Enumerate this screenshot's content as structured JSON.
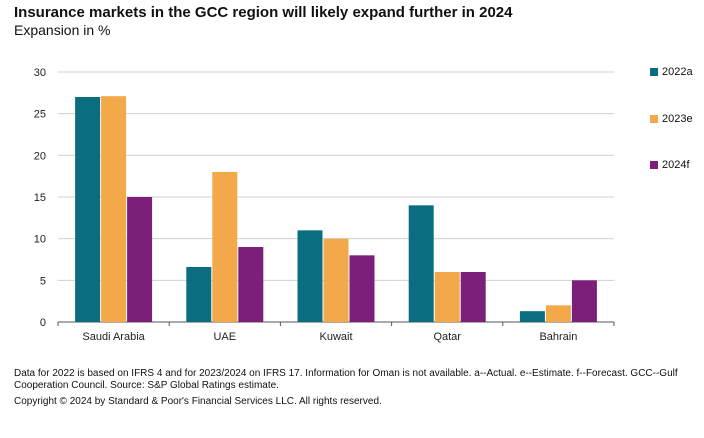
{
  "header": {
    "title": "Insurance markets in the GCC region will likely expand further in 2024",
    "subtitle": "Expansion in %"
  },
  "footer": {
    "note": "Data for 2022 is based on IFRS 4 and for 2023/2024 on IFRS 17. Information for Oman is not available. a--Actual. e--Estimate. f--Forecast. GCC--Gulf Cooperation Council. Source: S&P Global Ratings estimate.",
    "copyright": "Copyright © 2024 by Standard & Poor's Financial Services LLC. All rights reserved."
  },
  "chart_data": {
    "type": "bar",
    "title": "Insurance markets in the GCC region will likely expand further in 2024",
    "subtitle": "Expansion in %",
    "categories": [
      "Saudi Arabia",
      "UAE",
      "Kuwait",
      "Qatar",
      "Bahrain"
    ],
    "series": [
      {
        "name": "2022a",
        "color": "#0b6e80",
        "values": [
          27,
          6.6,
          11,
          14,
          1.3
        ]
      },
      {
        "name": "2023e",
        "color": "#f3a84a",
        "values": [
          27.1,
          18,
          10,
          6,
          2
        ]
      },
      {
        "name": "2024f",
        "color": "#7b1f7a",
        "values": [
          15,
          9,
          8,
          6,
          5
        ]
      }
    ],
    "ylim": [
      0,
      30
    ],
    "yticks": [
      0,
      5,
      10,
      15,
      20,
      25,
      30
    ],
    "grid": true,
    "legend_position": "right"
  }
}
